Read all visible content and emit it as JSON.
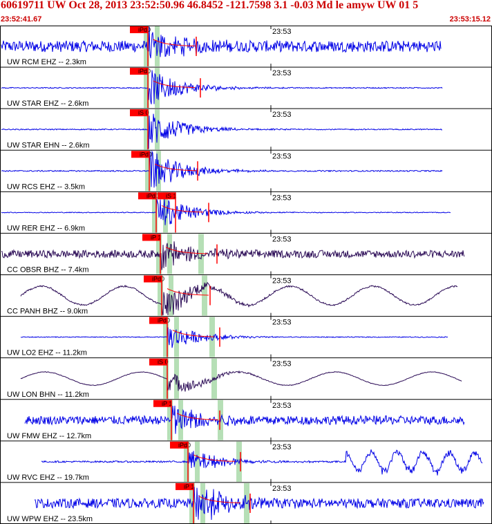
{
  "header": {
    "title": "60619711 UW Oct 28, 2013 23:52:50.96   46.8452 -121.7598  3.1 -0.03 Md le amyw UW 01   5",
    "start_time": "23:52:41.67",
    "end_time": "23:53:15.12"
  },
  "colors": {
    "header_text": "#cc0000",
    "trace_blue": "#0000e6",
    "trace_dark": "#2a0a55",
    "pick_red": "#ff0000",
    "window_green": "#b6dfb6",
    "border": "#000000"
  },
  "chart_data": {
    "type": "seismogram",
    "x_range": [
      "23:52:41.67",
      "23:53:15.12"
    ],
    "minute_tick_label": "23:53",
    "traces": [
      {
        "label": "UW RCM EHZ -- 2.3km",
        "distance_km": 2.3,
        "color": "blue",
        "amp": 0.38,
        "noise": 0.55,
        "kind": "noisy",
        "picks": [
          "iPd0"
        ],
        "coda": true
      },
      {
        "label": "UW STAR EHZ -- 2.6km",
        "distance_km": 2.6,
        "color": "blue",
        "amp": 0.45,
        "noise": 0.05,
        "kind": "quiet",
        "picks": [
          "iPd0"
        ],
        "coda": true
      },
      {
        "label": "UW STAR EHN -- 2.6km",
        "distance_km": 2.6,
        "color": "blue",
        "amp": 0.45,
        "noise": 0.05,
        "kind": "quiet",
        "picks": [
          "iS 0"
        ],
        "coda": false
      },
      {
        "label": "UW RCS EHZ -- 3.5km",
        "distance_km": 3.5,
        "color": "blue",
        "amp": 0.48,
        "noise": 0.06,
        "kind": "quiet",
        "picks": [
          "iPd0"
        ],
        "coda": true
      },
      {
        "label": "UW RER EHZ -- 6.9km",
        "distance_km": 6.9,
        "color": "blue",
        "amp": 0.42,
        "noise": 0.04,
        "kind": "quiet",
        "picks": [
          "iPd0",
          "iS 1"
        ],
        "coda": true
      },
      {
        "label": "CC OBSR BHZ -- 7.4km",
        "distance_km": 7.4,
        "color": "dark",
        "amp": 0.36,
        "noise": 0.36,
        "kind": "noisy",
        "picks": [
          "iP 1"
        ],
        "coda": true
      },
      {
        "label": "CC PANH BHZ -- 9.0km",
        "distance_km": 9.0,
        "color": "dark",
        "amp": 0.38,
        "noise": 0.05,
        "kind": "wave",
        "picks": [
          "iPd0"
        ],
        "coda": true
      },
      {
        "label": "UW LO2 EHZ -- 11.2km",
        "distance_km": 11.2,
        "color": "blue",
        "amp": 0.3,
        "noise": 0.04,
        "kind": "quiet",
        "picks": [
          "iPd0"
        ],
        "coda": true
      },
      {
        "label": "UW LON BHN -- 11.2km",
        "distance_km": 11.2,
        "color": "dark",
        "amp": 0.25,
        "noise": 0.02,
        "kind": "wave2",
        "picks": [
          "iS 0"
        ],
        "coda": false
      },
      {
        "label": "UW FMW EHZ -- 12.7km",
        "distance_km": 12.7,
        "color": "blue",
        "amp": 0.4,
        "noise": 0.42,
        "kind": "noisy",
        "picks": [
          "iP 1"
        ],
        "coda": true
      },
      {
        "label": "UW RVC EHZ -- 19.7km",
        "distance_km": 19.7,
        "color": "blue",
        "amp": 0.3,
        "noise": 0.08,
        "kind": "rvc",
        "picks": [
          "iPd0"
        ],
        "coda": true
      },
      {
        "label": "UW WPW EHZ -- 23.5km",
        "distance_km": 23.5,
        "color": "blue",
        "amp": 0.5,
        "noise": 0.45,
        "kind": "noisy",
        "picks": [
          "iP 1"
        ],
        "coda": true
      }
    ]
  }
}
